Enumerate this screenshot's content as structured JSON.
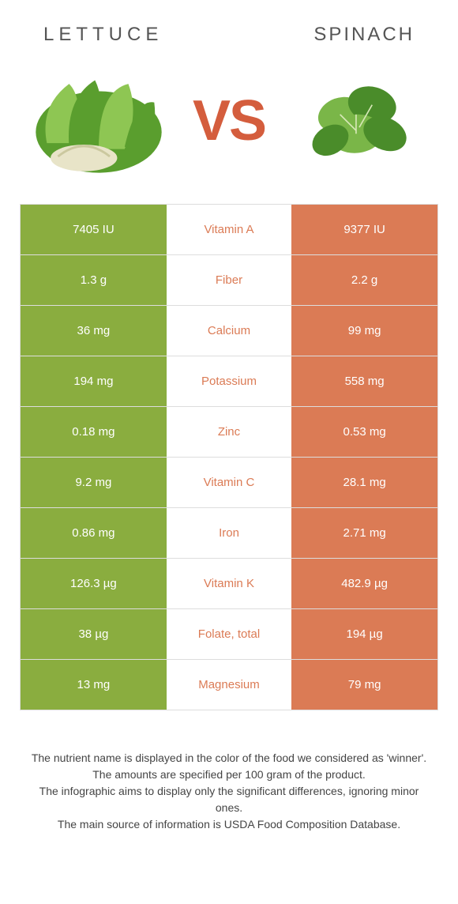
{
  "header": {
    "left_title": "LETTUCE",
    "right_title": "Spinach",
    "vs_text": "VS"
  },
  "colors": {
    "left_bg": "#8aad3f",
    "right_bg": "#db7b55",
    "winner_left_text": "#8aad3f",
    "winner_right_text": "#db7b55",
    "row_border": "#dddddd",
    "vs_color": "#d45d3d"
  },
  "table": {
    "rows": [
      {
        "left": "7405 IU",
        "nutrient": "Vitamin A",
        "right": "9377 IU",
        "winner": "right"
      },
      {
        "left": "1.3 g",
        "nutrient": "Fiber",
        "right": "2.2 g",
        "winner": "right"
      },
      {
        "left": "36 mg",
        "nutrient": "Calcium",
        "right": "99 mg",
        "winner": "right"
      },
      {
        "left": "194 mg",
        "nutrient": "Potassium",
        "right": "558 mg",
        "winner": "right"
      },
      {
        "left": "0.18 mg",
        "nutrient": "Zinc",
        "right": "0.53 mg",
        "winner": "right"
      },
      {
        "left": "9.2 mg",
        "nutrient": "Vitamin C",
        "right": "28.1 mg",
        "winner": "right"
      },
      {
        "left": "0.86 mg",
        "nutrient": "Iron",
        "right": "2.71 mg",
        "winner": "right"
      },
      {
        "left": "126.3 µg",
        "nutrient": "Vitamin K",
        "right": "482.9 µg",
        "winner": "right"
      },
      {
        "left": "38 µg",
        "nutrient": "Folate, total",
        "right": "194 µg",
        "winner": "right"
      },
      {
        "left": "13 mg",
        "nutrient": "Magnesium",
        "right": "79 mg",
        "winner": "right"
      }
    ]
  },
  "footer": {
    "line1": "The nutrient name is displayed in the color of the food we considered as 'winner'.",
    "line2": "The amounts are specified per 100 gram of the product.",
    "line3": "The infographic aims to display only the significant differences, ignoring minor ones.",
    "line4": "The main source of information is USDA Food Composition Database."
  }
}
